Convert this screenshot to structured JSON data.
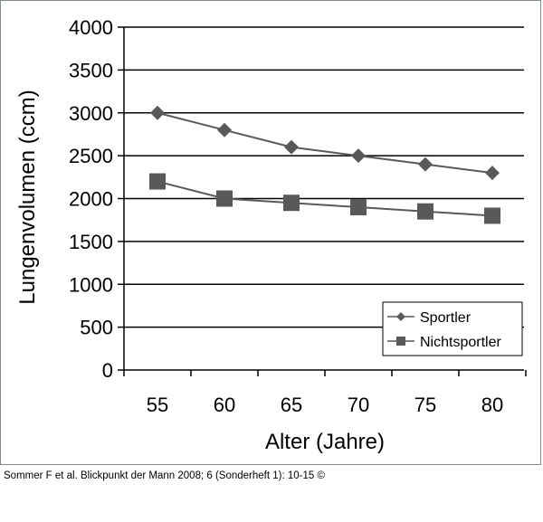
{
  "chart_data": {
    "type": "line",
    "title": "",
    "xlabel": "Alter (Jahre)",
    "ylabel": "Lungenvolumen (ccm)",
    "categories": [
      "55",
      "60",
      "65",
      "70",
      "75",
      "80"
    ],
    "ylim": [
      0,
      4000
    ],
    "yticks": [
      "0",
      "500",
      "1000",
      "1500",
      "2000",
      "2500",
      "3000",
      "3500",
      "4000"
    ],
    "grid": "horizontal",
    "legend_position": "bottom-right",
    "series": [
      {
        "name": "Sportler",
        "marker": "diamond",
        "color": "#595959",
        "values": [
          3000,
          2800,
          2600,
          2500,
          2400,
          2300
        ]
      },
      {
        "name": "Nichtsportler",
        "marker": "square",
        "color": "#595959",
        "values": [
          2200,
          2000,
          1950,
          1900,
          1850,
          1800
        ]
      }
    ]
  },
  "caption": "Sommer F et al. Blickpunkt der Mann 2008; 6 (Sonderheft 1): 10-15 ©"
}
